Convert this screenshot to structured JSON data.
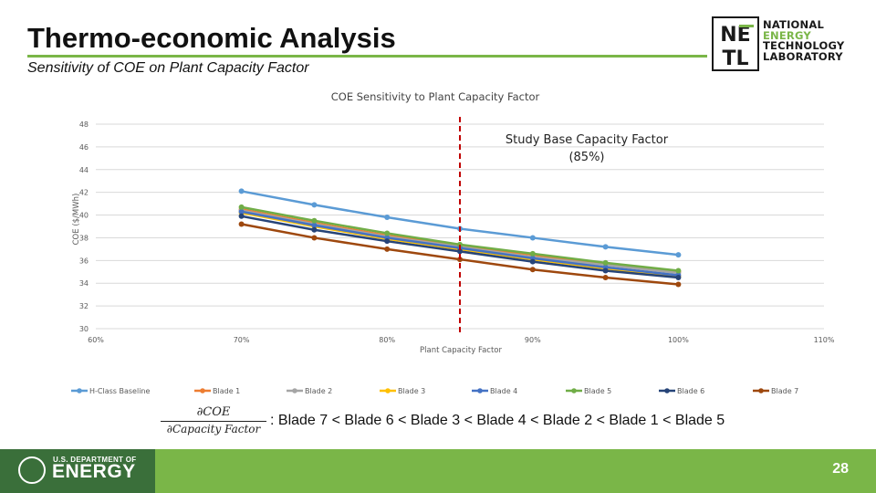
{
  "slide": {
    "title": "Thermo-economic Analysis",
    "subtitle": "Sensitivity of COE on Plant Capacity Factor",
    "page_number": "28"
  },
  "logo": {
    "mark": "NETL",
    "lines": [
      "NATIONAL",
      "ENERGY",
      "TECHNOLOGY",
      "LABORATORY"
    ]
  },
  "footer": {
    "doe_small": "U.S. DEPARTMENT OF",
    "doe_big": "ENERGY"
  },
  "formula": {
    "numerator": "∂COE",
    "denominator": "∂Capacity Factor",
    "ranking": ": Blade 7 < Blade 6 < Blade 3 < Blade 4 < Blade 2 < Blade 1 < Blade 5"
  },
  "colors": {
    "accent_green": "#7ab648",
    "doe_green": "#3a6f3a",
    "base_line": "#c00000"
  },
  "chart_data": {
    "type": "line",
    "title": "COE Sensitivity to Plant Capacity Factor",
    "xlabel": "Plant Capacity Factor",
    "ylabel": "COE ($/MWh)",
    "xlim": [
      60,
      110
    ],
    "ylim": [
      30,
      48
    ],
    "x_ticks": [
      60,
      70,
      80,
      90,
      100,
      110
    ],
    "x_tick_labels": [
      "60%",
      "70%",
      "80%",
      "90%",
      "100%",
      "110%"
    ],
    "y_ticks": [
      30,
      32,
      34,
      36,
      38,
      40,
      42,
      44,
      46,
      48
    ],
    "grid": true,
    "legend": "bottom",
    "base_line": {
      "x": 85,
      "label_lines": [
        "Study Base Capacity Factor",
        "(85%)"
      ]
    },
    "x": [
      70,
      75,
      80,
      85,
      90,
      95,
      100
    ],
    "series": [
      {
        "name": "H-Class Baseline",
        "color": "#5b9bd5",
        "values": [
          42.1,
          40.9,
          39.8,
          38.8,
          38.0,
          37.2,
          36.5
        ]
      },
      {
        "name": "Blade 1",
        "color": "#ed7d31",
        "values": [
          40.5,
          39.3,
          38.2,
          37.3,
          36.5,
          35.7,
          35.0
        ]
      },
      {
        "name": "Blade 2",
        "color": "#a5a5a5",
        "values": [
          40.4,
          39.2,
          38.1,
          37.2,
          36.3,
          35.6,
          34.9
        ]
      },
      {
        "name": "Blade 3",
        "color": "#ffc000",
        "values": [
          40.2,
          39.0,
          37.9,
          37.0,
          36.1,
          35.3,
          34.6
        ]
      },
      {
        "name": "Blade 4",
        "color": "#4472c4",
        "values": [
          40.3,
          39.1,
          38.0,
          37.1,
          36.2,
          35.4,
          34.7
        ]
      },
      {
        "name": "Blade 5",
        "color": "#70ad47",
        "values": [
          40.7,
          39.5,
          38.4,
          37.4,
          36.6,
          35.8,
          35.1
        ]
      },
      {
        "name": "Blade 6",
        "color": "#264478",
        "values": [
          39.9,
          38.7,
          37.7,
          36.8,
          35.9,
          35.1,
          34.5
        ]
      },
      {
        "name": "Blade 7",
        "color": "#9e480e",
        "values": [
          39.2,
          38.0,
          37.0,
          36.1,
          35.2,
          34.5,
          33.9
        ]
      }
    ]
  }
}
